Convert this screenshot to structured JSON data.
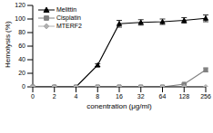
{
  "chart_data": {
    "type": "line",
    "x_label": "conentration (μg/ml)",
    "y_label": "Hemolysis (%)",
    "categories": [
      "0",
      "2",
      "4",
      "8",
      "16",
      "32",
      "64",
      "128",
      "256"
    ],
    "ylim": [
      0,
      120
    ],
    "yticks": [
      0,
      20,
      40,
      60,
      80,
      100,
      120
    ],
    "legend": "top-left",
    "series": [
      {
        "name": "Melittin",
        "color": "#000000",
        "marker": "triangle",
        "values": [
          0,
          0,
          0,
          32,
          93,
          95,
          96,
          98,
          101
        ],
        "errors": [
          0,
          0,
          0,
          2,
          5,
          4,
          4,
          4,
          5
        ]
      },
      {
        "name": "Cisplatin",
        "color": "#808080",
        "marker": "square",
        "values": [
          0,
          0,
          0,
          0,
          0,
          0,
          0,
          4,
          25
        ],
        "errors": [
          0,
          0,
          0,
          0,
          0,
          0,
          0,
          1,
          3
        ]
      },
      {
        "name": "MTERF2",
        "color": "#b0b0b0",
        "marker": "diamond",
        "values": [
          0,
          0,
          0,
          0,
          0,
          0,
          0,
          0,
          0
        ],
        "errors": [
          0,
          0,
          0,
          0,
          0,
          0,
          0,
          0,
          0
        ]
      }
    ]
  }
}
